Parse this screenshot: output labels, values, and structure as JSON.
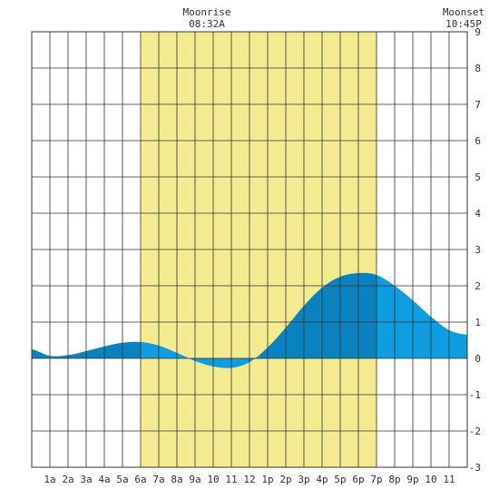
{
  "annotations": {
    "moonrise_label": "Moonrise",
    "moonrise_time": "08:32A",
    "moonset_label": "Moonset",
    "moonset_time": "10:45P"
  },
  "chart_data": {
    "type": "area",
    "title": "",
    "xlabel": "",
    "ylabel": "",
    "xlim": [
      0,
      24
    ],
    "ylim": [
      -3,
      9
    ],
    "grid": true,
    "x_tick_labels": [
      "1a",
      "2a",
      "3a",
      "4a",
      "5a",
      "6a",
      "7a",
      "8a",
      "9a",
      "10",
      "11",
      "12",
      "1p",
      "2p",
      "3p",
      "4p",
      "5p",
      "6p",
      "7p",
      "8p",
      "9p",
      "10",
      "11"
    ],
    "y_tick_labels": [
      "9",
      "8",
      "7",
      "6",
      "5",
      "4",
      "3",
      "2",
      "1",
      "0",
      "-1",
      "-2",
      "-3"
    ],
    "daylight": {
      "start_hour": 6.0,
      "end_hour": 19.0
    },
    "moonrise_hour": 8.53,
    "moonset_hour": 22.75,
    "series": [
      {
        "x": [
          0,
          1,
          2,
          3,
          4,
          5,
          6,
          7,
          8,
          9,
          10,
          11,
          12,
          13,
          14,
          15,
          16,
          17,
          18,
          19,
          20,
          21,
          22,
          23,
          24
        ],
        "values": [
          0.25,
          0.07,
          0.09,
          0.2,
          0.33,
          0.43,
          0.45,
          0.35,
          0.15,
          -0.07,
          -0.22,
          -0.26,
          -0.1,
          0.3,
          0.85,
          1.45,
          1.95,
          2.25,
          2.35,
          2.3,
          2.0,
          1.6,
          1.15,
          0.78,
          0.65
        ]
      }
    ],
    "colors": {
      "daylight": "#f2eb8f",
      "tide_light": "#0f9de0",
      "tide_dark": "#0b82bf",
      "grid": "#333333",
      "frame": "#333333"
    }
  }
}
